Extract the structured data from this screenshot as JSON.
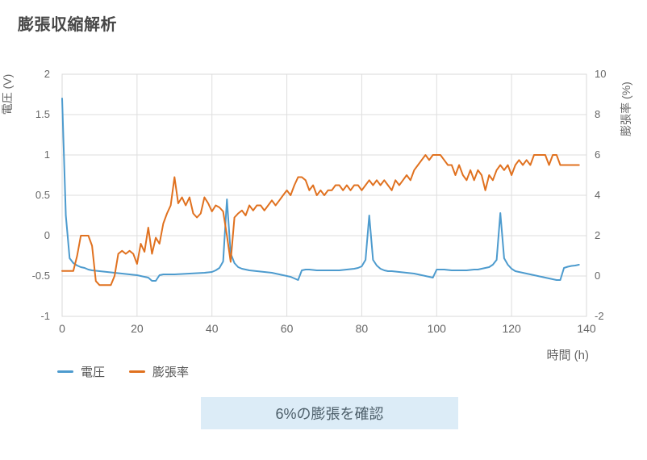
{
  "page": {
    "title": "膨張収縮解析"
  },
  "chart_data": {
    "type": "line",
    "title": "膨張収縮解析",
    "x_label": "時間 (h)",
    "x_min": 0,
    "x_max": 140,
    "x_ticks": [
      0,
      20,
      40,
      60,
      80,
      100,
      120,
      140
    ],
    "hours_per_point": 1,
    "grid": true,
    "legend_position": "bottom-left",
    "annotation": "6%の膨張を確認",
    "y_left": {
      "label": "電圧 (V)",
      "min": -1,
      "max": 2,
      "ticks": [
        2,
        1.5,
        1,
        0.5,
        0,
        -0.5,
        -1
      ]
    },
    "y_right": {
      "label": "膨張率 (%)",
      "min": -2,
      "max": 10,
      "ticks": [
        10,
        8,
        6,
        4,
        2,
        0,
        -2
      ]
    },
    "series": [
      {
        "name": "電圧",
        "axis": "left",
        "color": "#4d9bce",
        "values": [
          1.7,
          0.25,
          -0.28,
          -0.34,
          -0.37,
          -0.39,
          -0.4,
          -0.42,
          -0.43,
          -0.435,
          -0.44,
          -0.445,
          -0.45,
          -0.455,
          -0.46,
          -0.465,
          -0.47,
          -0.475,
          -0.48,
          -0.485,
          -0.49,
          -0.5,
          -0.51,
          -0.52,
          -0.56,
          -0.56,
          -0.49,
          -0.48,
          -0.48,
          -0.48,
          -0.48,
          -0.478,
          -0.475,
          -0.472,
          -0.47,
          -0.468,
          -0.465,
          -0.462,
          -0.46,
          -0.455,
          -0.45,
          -0.43,
          -0.4,
          -0.32,
          0.45,
          -0.22,
          -0.34,
          -0.39,
          -0.41,
          -0.42,
          -0.43,
          -0.435,
          -0.44,
          -0.445,
          -0.45,
          -0.455,
          -0.46,
          -0.47,
          -0.48,
          -0.49,
          -0.5,
          -0.51,
          -0.53,
          -0.55,
          -0.43,
          -0.42,
          -0.42,
          -0.425,
          -0.43,
          -0.43,
          -0.43,
          -0.43,
          -0.43,
          -0.43,
          -0.43,
          -0.425,
          -0.42,
          -0.415,
          -0.41,
          -0.4,
          -0.38,
          -0.3,
          0.25,
          -0.3,
          -0.37,
          -0.41,
          -0.43,
          -0.44,
          -0.44,
          -0.445,
          -0.45,
          -0.455,
          -0.46,
          -0.465,
          -0.47,
          -0.48,
          -0.49,
          -0.5,
          -0.51,
          -0.52,
          -0.42,
          -0.42,
          -0.42,
          -0.425,
          -0.43,
          -0.43,
          -0.43,
          -0.43,
          -0.43,
          -0.425,
          -0.42,
          -0.42,
          -0.41,
          -0.4,
          -0.39,
          -0.36,
          -0.3,
          0.28,
          -0.28,
          -0.36,
          -0.41,
          -0.44,
          -0.45,
          -0.46,
          -0.47,
          -0.48,
          -0.49,
          -0.5,
          -0.51,
          -0.52,
          -0.53,
          -0.54,
          -0.55,
          -0.55,
          -0.4,
          -0.385,
          -0.375,
          -0.37,
          -0.36
        ]
      },
      {
        "name": "膨張率",
        "axis": "right",
        "color": "#e0711f",
        "values": [
          0.25,
          0.25,
          0.25,
          0.25,
          1.0,
          2.0,
          2.0,
          2.0,
          1.5,
          -0.25,
          -0.45,
          -0.45,
          -0.45,
          -0.45,
          0.0,
          1.1,
          1.25,
          1.1,
          1.25,
          1.1,
          0.6,
          1.6,
          1.2,
          2.4,
          1.1,
          1.9,
          1.6,
          2.6,
          3.1,
          3.5,
          4.9,
          3.6,
          3.9,
          3.5,
          3.9,
          3.1,
          2.9,
          3.1,
          3.9,
          3.6,
          3.2,
          3.5,
          3.4,
          3.2,
          2.0,
          0.7,
          2.9,
          3.1,
          3.25,
          3.0,
          3.5,
          3.25,
          3.5,
          3.5,
          3.25,
          3.5,
          3.75,
          3.5,
          3.75,
          4.0,
          4.25,
          4.0,
          4.5,
          4.9,
          4.9,
          4.75,
          4.25,
          4.5,
          4.0,
          4.25,
          4.0,
          4.25,
          4.25,
          4.5,
          4.5,
          4.25,
          4.5,
          4.25,
          4.5,
          4.5,
          4.25,
          4.5,
          4.75,
          4.5,
          4.75,
          4.5,
          4.75,
          4.5,
          4.25,
          4.75,
          4.5,
          4.75,
          5.0,
          4.75,
          5.25,
          5.5,
          5.75,
          6.0,
          5.75,
          6.0,
          6.0,
          6.0,
          5.75,
          5.5,
          5.5,
          5.0,
          5.5,
          5.0,
          4.75,
          5.25,
          4.75,
          5.25,
          5.0,
          4.25,
          5.0,
          4.75,
          5.25,
          5.5,
          5.25,
          5.5,
          5.0,
          5.5,
          5.75,
          5.5,
          5.75,
          5.5,
          6.0,
          6.0,
          6.0,
          6.0,
          5.5,
          6.0,
          6.0,
          5.5,
          5.5,
          5.5,
          5.5,
          5.5,
          5.5
        ]
      }
    ]
  },
  "colors": {
    "grid": "#dedede",
    "axis_text": "#666666",
    "title_text": "#474747",
    "banner_bg": "#dcecf7",
    "banner_text": "#4c5e69"
  }
}
